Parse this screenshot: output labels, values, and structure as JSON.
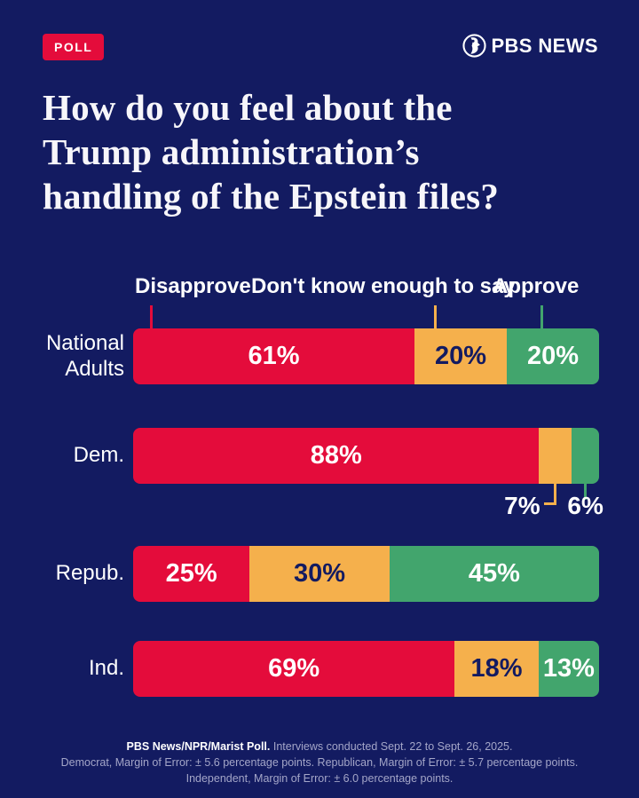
{
  "header": {
    "badge": "POLL",
    "brand": "PBS NEWS"
  },
  "title_lines": [
    "How do you feel about the",
    "Trump administration’s",
    "handling of the Epstein files?"
  ],
  "colors": {
    "background": "#131b61",
    "disapprove_red": "#e40c3b",
    "dontknow_orange": "#f5b04c",
    "approve_green": "#42a56d",
    "label_light": "#ffffff",
    "label_dark": "#131b61",
    "footer_muted": "#a4a6c8"
  },
  "chart_data": {
    "type": "bar",
    "stacked": true,
    "orientation": "horizontal",
    "unit": "%",
    "title": "How do you feel about the Trump administration’s handling of the Epstein files?",
    "legend": [
      "Disapprove",
      "Don't know enough to say",
      "Approve"
    ],
    "legend_position": "top",
    "categories": [
      "National Adults",
      "Dem.",
      "Repub.",
      "Ind."
    ],
    "series": [
      {
        "name": "Disapprove",
        "color": "#e40c3b",
        "values": [
          61,
          88,
          25,
          69
        ]
      },
      {
        "name": "Don't know enough to say",
        "color": "#f5b04c",
        "values": [
          20,
          7,
          30,
          18
        ]
      },
      {
        "name": "Approve",
        "color": "#42a56d",
        "values": [
          20,
          6,
          45,
          13
        ]
      }
    ],
    "rows": [
      {
        "category": "National Adults",
        "segments": [
          {
            "series": "Disapprove",
            "value": 61,
            "label": "61%",
            "label_pos": "inside",
            "label_color": "light"
          },
          {
            "series": "Don't know enough to say",
            "value": 20,
            "label": "20%",
            "label_pos": "inside",
            "label_color": "dark"
          },
          {
            "series": "Approve",
            "value": 20,
            "label": "20%",
            "label_pos": "inside",
            "label_color": "light"
          }
        ]
      },
      {
        "category": "Dem.",
        "segments": [
          {
            "series": "Disapprove",
            "value": 88,
            "label": "88%",
            "label_pos": "inside",
            "label_color": "light"
          },
          {
            "series": "Don't know enough to say",
            "value": 7,
            "label": "7%",
            "label_pos": "callout-left",
            "label_color": "light"
          },
          {
            "series": "Approve",
            "value": 6,
            "label": "6%",
            "label_pos": "callout-below",
            "label_color": "light"
          }
        ]
      },
      {
        "category": "Repub.",
        "segments": [
          {
            "series": "Disapprove",
            "value": 25,
            "label": "25%",
            "label_pos": "inside",
            "label_color": "light"
          },
          {
            "series": "Don't know enough to say",
            "value": 30,
            "label": "30%",
            "label_pos": "inside",
            "label_color": "dark"
          },
          {
            "series": "Approve",
            "value": 45,
            "label": "45%",
            "label_pos": "inside",
            "label_color": "light"
          }
        ]
      },
      {
        "category": "Ind.",
        "segments": [
          {
            "series": "Disapprove",
            "value": 69,
            "label": "69%",
            "label_pos": "inside",
            "label_color": "light"
          },
          {
            "series": "Don't know enough to say",
            "value": 18,
            "label": "18%",
            "label_pos": "inside",
            "label_color": "dark"
          },
          {
            "series": "Approve",
            "value": 13,
            "label": "13%",
            "label_pos": "inside",
            "label_color": "light"
          }
        ]
      }
    ]
  },
  "footer": {
    "bold": "PBS News/NPR/Marist Poll.",
    "line1_rest": " Interviews conducted Sept. 22 to Sept. 26, 2025.",
    "rest": "Democrat, Margin of Error: ± 5.6 percentage points. Republican, Margin of Error: ± 5.7 percentage points. Independent, Margin of Error: ± 6.0 percentage points."
  }
}
